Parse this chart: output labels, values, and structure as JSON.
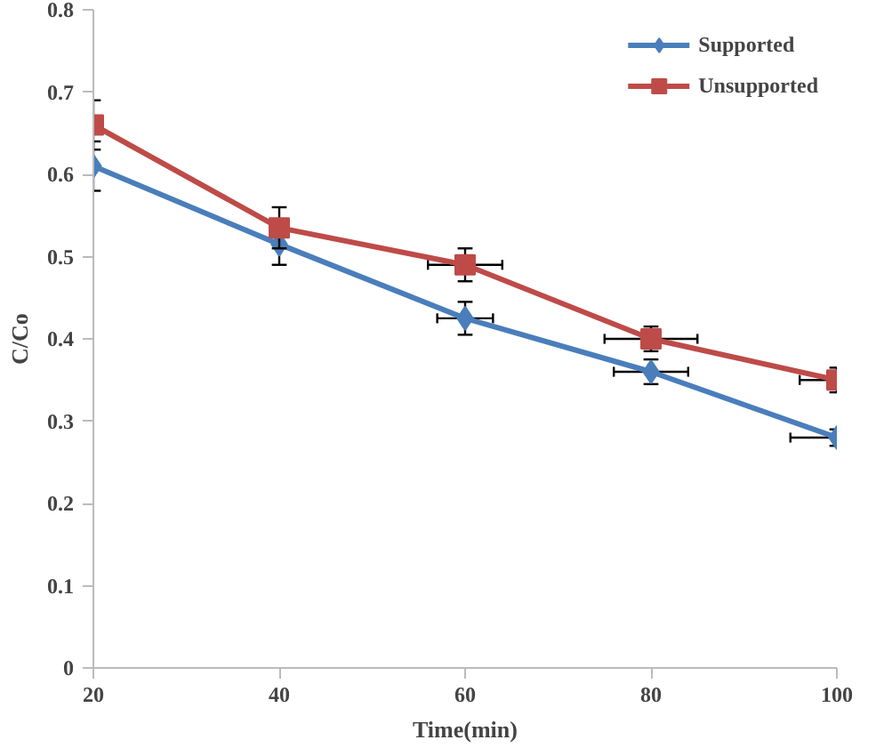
{
  "chart_data": {
    "type": "line",
    "xlabel": "Time(min)",
    "ylabel": "C/Co",
    "x": [
      20,
      40,
      60,
      80,
      100
    ],
    "series": [
      {
        "name": "Supported",
        "color": "#4a7ebb",
        "marker": "diamond",
        "values": [
          0.61,
          0.515,
          0.425,
          0.36,
          0.28
        ],
        "errors": [
          0.03,
          0.025,
          0.02,
          0.015,
          0.01
        ],
        "xerrors": [
          null,
          null,
          3,
          4,
          [
            95,
            100
          ]
        ]
      },
      {
        "name": "Unsupported",
        "color": "#be4b48",
        "marker": "square",
        "values": [
          0.66,
          0.535,
          0.49,
          0.4,
          0.35
        ],
        "errors": [
          0.03,
          0.025,
          0.02,
          0.015,
          0.015
        ],
        "xerrors": [
          null,
          null,
          4,
          5,
          [
            96,
            100
          ]
        ]
      }
    ],
    "xlim": [
      20,
      100
    ],
    "xticks": [
      20,
      40,
      60,
      80,
      100
    ],
    "ylim": [
      0,
      0.8
    ],
    "yticks": [
      0,
      0.1,
      0.2,
      0.3,
      0.4,
      0.5,
      0.6,
      0.7,
      0.8
    ],
    "grid": false,
    "legend": "top right",
    "line_style": "solid"
  }
}
